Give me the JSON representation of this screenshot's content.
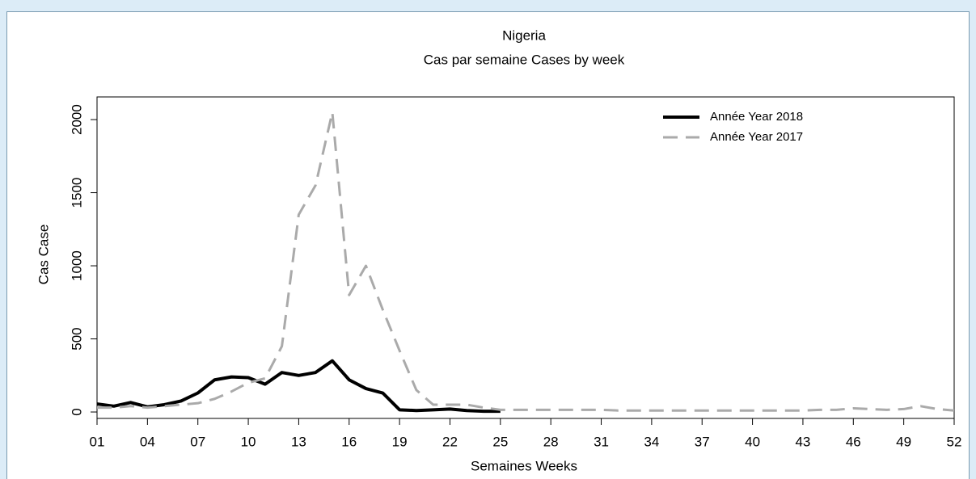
{
  "chart_data": {
    "type": "line",
    "title": "Nigeria",
    "subtitle": "Cas par semaine Cases by week",
    "x_label": "Semaines Weeks",
    "y_label": "Cas Case",
    "x": [
      1,
      2,
      3,
      4,
      5,
      6,
      7,
      8,
      9,
      10,
      11,
      12,
      13,
      14,
      15,
      16,
      17,
      18,
      19,
      20,
      21,
      22,
      23,
      24,
      25,
      26,
      27,
      28,
      29,
      30,
      31,
      32,
      33,
      34,
      35,
      36,
      37,
      38,
      39,
      40,
      41,
      42,
      43,
      44,
      45,
      46,
      47,
      48,
      49,
      50,
      51,
      52
    ],
    "series": [
      {
        "name": "Année Year 2018",
        "color": "#000000",
        "dash": false,
        "values": [
          55,
          40,
          65,
          35,
          50,
          75,
          130,
          220,
          240,
          235,
          190,
          270,
          250,
          270,
          350,
          220,
          160,
          130,
          15,
          10,
          15,
          20,
          10,
          5,
          5,
          null,
          null,
          null,
          null,
          null,
          null,
          null,
          null,
          null,
          null,
          null,
          null,
          null,
          null,
          null,
          null,
          null,
          null,
          null,
          null,
          null,
          null,
          null,
          null,
          null,
          null,
          null
        ]
      },
      {
        "name": "Année Year 2017",
        "color": "#aaaaaa",
        "dash": true,
        "values": [
          30,
          30,
          40,
          30,
          40,
          50,
          60,
          90,
          140,
          200,
          230,
          450,
          1350,
          1550,
          2050,
          800,
          1000,
          700,
          420,
          150,
          50,
          50,
          50,
          30,
          15,
          15,
          15,
          15,
          15,
          15,
          15,
          10,
          10,
          10,
          10,
          10,
          10,
          10,
          10,
          10,
          10,
          10,
          10,
          15,
          15,
          25,
          20,
          15,
          20,
          40,
          20,
          10
        ]
      }
    ],
    "xlim": [
      1,
      52
    ],
    "xticks": [
      {
        "value": 1,
        "label": "01"
      },
      {
        "value": 4,
        "label": "04"
      },
      {
        "value": 7,
        "label": "07"
      },
      10,
      13,
      16,
      19,
      22,
      25,
      28,
      31,
      34,
      37,
      40,
      43,
      46,
      49,
      52
    ],
    "ylim": [
      -44,
      2155
    ],
    "yticks": [
      0,
      500,
      1000,
      1500,
      2000
    ],
    "legend": "top-right"
  }
}
